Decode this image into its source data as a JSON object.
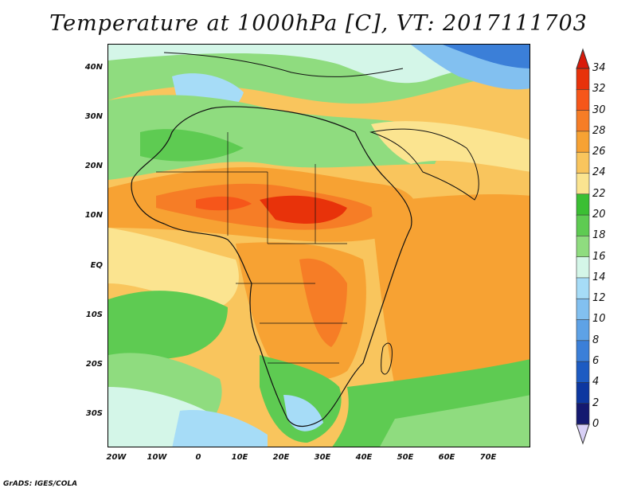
{
  "title": "Temperature at 1000hPa [C], VT: 2017111703",
  "credit": "GrADS: IGES/COLA",
  "lat_labels": [
    "40N",
    "30N",
    "20N",
    "10N",
    "EQ",
    "10S",
    "20S",
    "30S"
  ],
  "lon_labels": [
    "20W",
    "10W",
    "0",
    "10E",
    "20E",
    "30E",
    "40E",
    "50E",
    "60E",
    "70E"
  ],
  "colorbar": {
    "labels": [
      "34",
      "32",
      "30",
      "28",
      "26",
      "24",
      "22",
      "20",
      "18",
      "16",
      "14",
      "12",
      "10",
      "8",
      "6",
      "4",
      "2",
      "0"
    ],
    "colors": [
      "#e8320a",
      "#f6561a",
      "#f67d26",
      "#f7a233",
      "#f9c55d",
      "#fbe490",
      "#3bbf33",
      "#5ecb52",
      "#8fdc7f",
      "#d4f6e8",
      "#a6dcf7",
      "#82c0f0",
      "#5ea2e6",
      "#3b7fd8",
      "#1d5bc2",
      "#0d37a0",
      "#141970"
    ],
    "top_arrow_color": "#d81a0a",
    "bottom_arrow_color": "#d8d0f6"
  },
  "map_colors": {
    "hot": "#e8320a",
    "very_warm": "#f6561a",
    "warm": "#f67d26",
    "orange": "#f7a233",
    "light_orange": "#f9c55d",
    "yellow": "#fbe490",
    "green": "#3bbf33",
    "mid_green": "#5ecb52",
    "light_green": "#8fdc7f",
    "pale_cyan": "#d4f6e8",
    "light_blue": "#a6dcf7",
    "blue": "#82c0f0",
    "mid_blue": "#5ea2e6",
    "deep_blue": "#3b7fd8"
  }
}
